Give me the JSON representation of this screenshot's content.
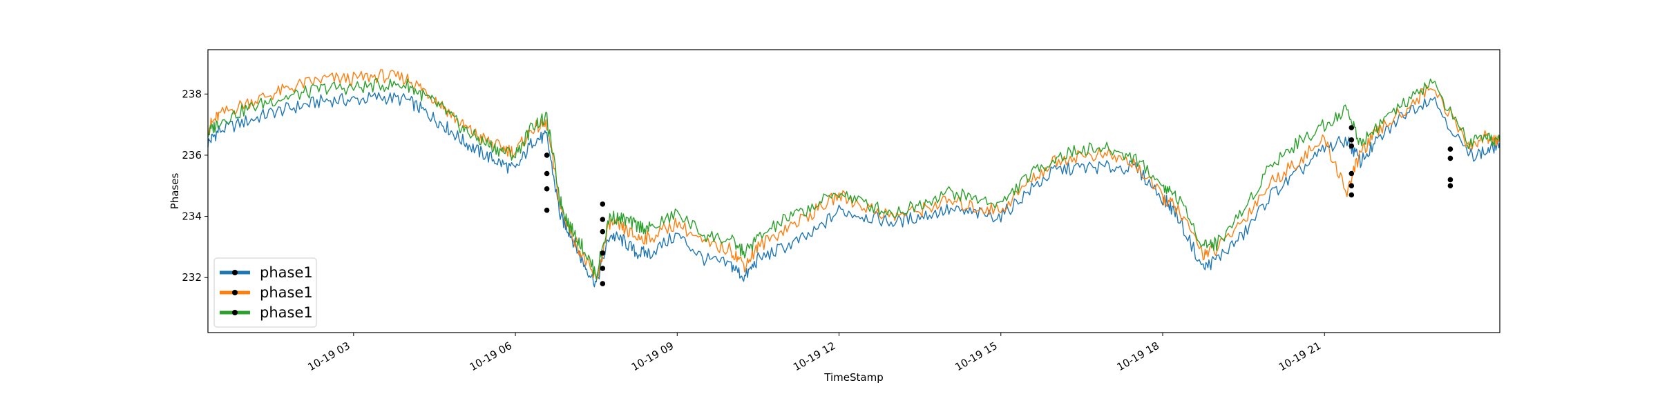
{
  "chart_data": {
    "type": "line",
    "title": "",
    "xlabel": "TimeStamp",
    "ylabel": "Phases",
    "xlim": [
      "2019-10-19 00:18",
      "2019-10-19 24:15"
    ],
    "ylim": [
      230.2,
      239.45
    ],
    "x_ticks": [
      {
        "x": "2019-10-19 03:00",
        "label": "10-19 03"
      },
      {
        "x": "2019-10-19 06:00",
        "label": "10-19 06"
      },
      {
        "x": "2019-10-19 09:00",
        "label": "10-19 09"
      },
      {
        "x": "2019-10-19 12:00",
        "label": "10-19 12"
      },
      {
        "x": "2019-10-19 15:00",
        "label": "10-19 15"
      },
      {
        "x": "2019-10-19 18:00",
        "label": "10-19 18"
      },
      {
        "x": "2019-10-19 21:00",
        "label": "10-19 21"
      }
    ],
    "y_ticks": [
      {
        "y": 232,
        "label": "232"
      },
      {
        "y": 234,
        "label": "234"
      },
      {
        "y": 236,
        "label": "236"
      },
      {
        "y": 238,
        "label": "238"
      }
    ],
    "grid": false,
    "legend": {
      "position": "lower-left"
    },
    "x": [
      "00:18",
      "00:30",
      "01:00",
      "01:30",
      "02:00",
      "02:30",
      "03:00",
      "03:30",
      "04:00",
      "04:20",
      "04:40",
      "05:00",
      "05:20",
      "05:40",
      "06:00",
      "06:20",
      "06:35",
      "06:50",
      "07:00",
      "07:15",
      "07:30",
      "07:45",
      "08:00",
      "08:15",
      "08:30",
      "09:00",
      "09:30",
      "10:00",
      "10:15",
      "10:30",
      "11:00",
      "11:30",
      "12:00",
      "12:30",
      "13:00",
      "13:30",
      "14:00",
      "14:30",
      "15:00",
      "15:30",
      "16:00",
      "16:30",
      "17:00",
      "17:30",
      "18:00",
      "18:15",
      "18:45",
      "19:00",
      "19:30",
      "20:00",
      "20:30",
      "21:00",
      "21:25",
      "21:40",
      "22:00",
      "22:30",
      "23:00",
      "23:40",
      "24:00",
      "24:15"
    ],
    "series": [
      {
        "name": "phase1",
        "color": "#1f77b4",
        "values": [
          236.4,
          236.8,
          237.1,
          237.4,
          237.6,
          237.8,
          237.8,
          237.9,
          237.8,
          237.4,
          237.0,
          236.5,
          236.1,
          235.8,
          235.5,
          236.5,
          236.6,
          234.0,
          233.5,
          232.5,
          231.8,
          233.4,
          233.2,
          232.8,
          232.8,
          233.4,
          232.6,
          232.4,
          232.0,
          232.6,
          233.0,
          233.4,
          234.2,
          234.0,
          233.8,
          234.0,
          234.2,
          234.1,
          234.0,
          234.8,
          235.5,
          235.6,
          235.6,
          235.6,
          234.6,
          234.1,
          232.3,
          232.6,
          233.4,
          234.7,
          235.4,
          236.2,
          236.5,
          235.8,
          236.5,
          237.4,
          237.9,
          236.0,
          236.1,
          236.4
        ]
      },
      {
        "name": "phase1",
        "color": "#ff7f0e",
        "values": [
          236.9,
          237.3,
          237.7,
          238.0,
          238.3,
          238.5,
          238.5,
          238.6,
          238.5,
          238.1,
          237.6,
          237.0,
          236.6,
          236.3,
          236.1,
          236.9,
          237.0,
          234.3,
          233.6,
          232.7,
          231.9,
          233.8,
          233.6,
          233.3,
          233.3,
          233.8,
          233.1,
          232.9,
          232.4,
          233.0,
          233.6,
          234.1,
          234.7,
          234.3,
          234.0,
          234.2,
          234.5,
          234.3,
          234.2,
          235.1,
          235.8,
          236.0,
          236.0,
          235.7,
          234.6,
          234.3,
          232.8,
          232.9,
          233.9,
          235.1,
          235.8,
          236.5,
          234.8,
          236.1,
          236.8,
          237.5,
          238.3,
          236.3,
          236.6,
          236.5
        ]
      },
      {
        "name": "phase1",
        "color": "#2ca02c",
        "values": [
          236.7,
          237.1,
          237.5,
          237.8,
          238.0,
          238.2,
          238.2,
          238.3,
          238.3,
          237.9,
          237.5,
          236.9,
          236.5,
          236.2,
          236.0,
          237.0,
          237.2,
          234.5,
          233.7,
          233.0,
          232.1,
          234.0,
          233.9,
          233.7,
          233.6,
          234.1,
          233.4,
          233.2,
          232.8,
          233.3,
          233.9,
          234.3,
          234.8,
          234.4,
          234.1,
          234.4,
          234.8,
          234.6,
          234.4,
          235.3,
          235.9,
          236.2,
          236.2,
          235.9,
          235.0,
          234.7,
          233.1,
          233.1,
          234.2,
          235.7,
          236.4,
          237.0,
          237.5,
          236.4,
          237.0,
          237.7,
          238.4,
          236.4,
          236.5,
          236.5
        ]
      }
    ]
  },
  "legend_items": [
    "phase1",
    "phase1",
    "phase1"
  ],
  "markers": [
    {
      "x": "06:35",
      "y": 236.0
    },
    {
      "x": "06:35",
      "y": 235.4
    },
    {
      "x": "06:35",
      "y": 234.9
    },
    {
      "x": "06:35",
      "y": 234.2
    },
    {
      "x": "07:37",
      "y": 234.4
    },
    {
      "x": "07:37",
      "y": 233.9
    },
    {
      "x": "07:37",
      "y": 233.5
    },
    {
      "x": "07:37",
      "y": 232.8
    },
    {
      "x": "07:37",
      "y": 232.3
    },
    {
      "x": "07:37",
      "y": 231.8
    },
    {
      "x": "21:30",
      "y": 236.9
    },
    {
      "x": "21:30",
      "y": 236.5
    },
    {
      "x": "21:30",
      "y": 236.3
    },
    {
      "x": "21:30",
      "y": 235.4
    },
    {
      "x": "21:30",
      "y": 235.0
    },
    {
      "x": "21:30",
      "y": 234.7
    },
    {
      "x": "23:20",
      "y": 236.2
    },
    {
      "x": "23:20",
      "y": 235.9
    },
    {
      "x": "23:20",
      "y": 235.2
    },
    {
      "x": "23:20",
      "y": 235.0
    }
  ]
}
